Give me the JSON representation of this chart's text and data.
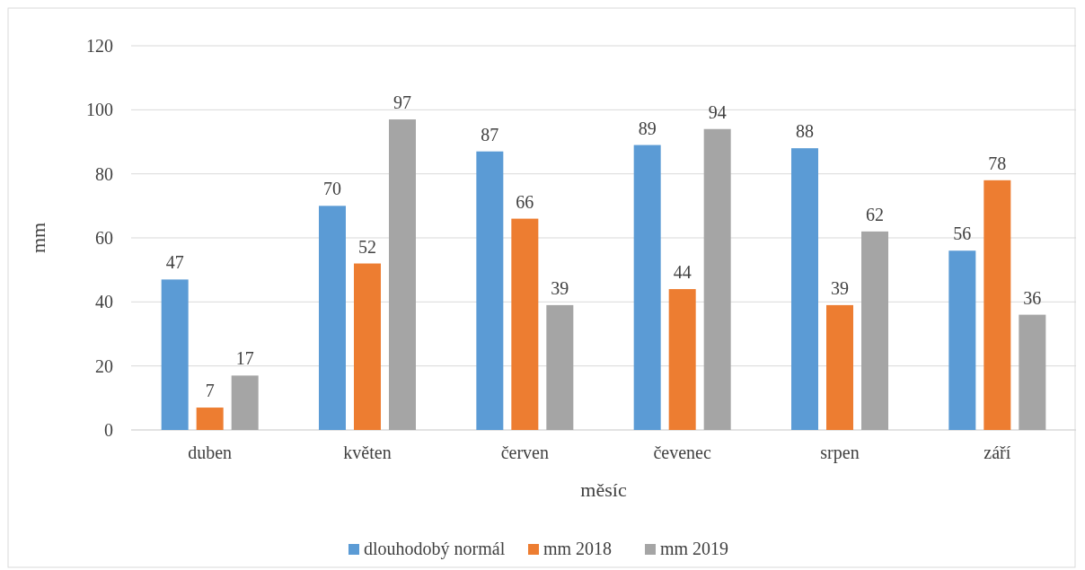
{
  "chart_data": {
    "type": "bar",
    "xlabel": "měsíc",
    "ylabel": "mm",
    "categories": [
      "duben",
      "květen",
      "červen",
      "čevenec",
      "srpen",
      "září"
    ],
    "series": [
      {
        "name": "dlouhodobý normál",
        "color": "#5b9bd5",
        "values": [
          47,
          70,
          87,
          89,
          88,
          56
        ]
      },
      {
        "name": "mm 2018",
        "color": "#ed7d31",
        "values": [
          7,
          52,
          66,
          44,
          39,
          78
        ]
      },
      {
        "name": "mm 2019",
        "color": "#a5a5a5",
        "values": [
          17,
          97,
          39,
          94,
          62,
          36
        ]
      }
    ],
    "ylim": [
      0,
      120
    ],
    "yticks": [
      0,
      20,
      40,
      60,
      80,
      100,
      120
    ],
    "grid": "y",
    "legend": "bottom",
    "data_labels": true
  }
}
